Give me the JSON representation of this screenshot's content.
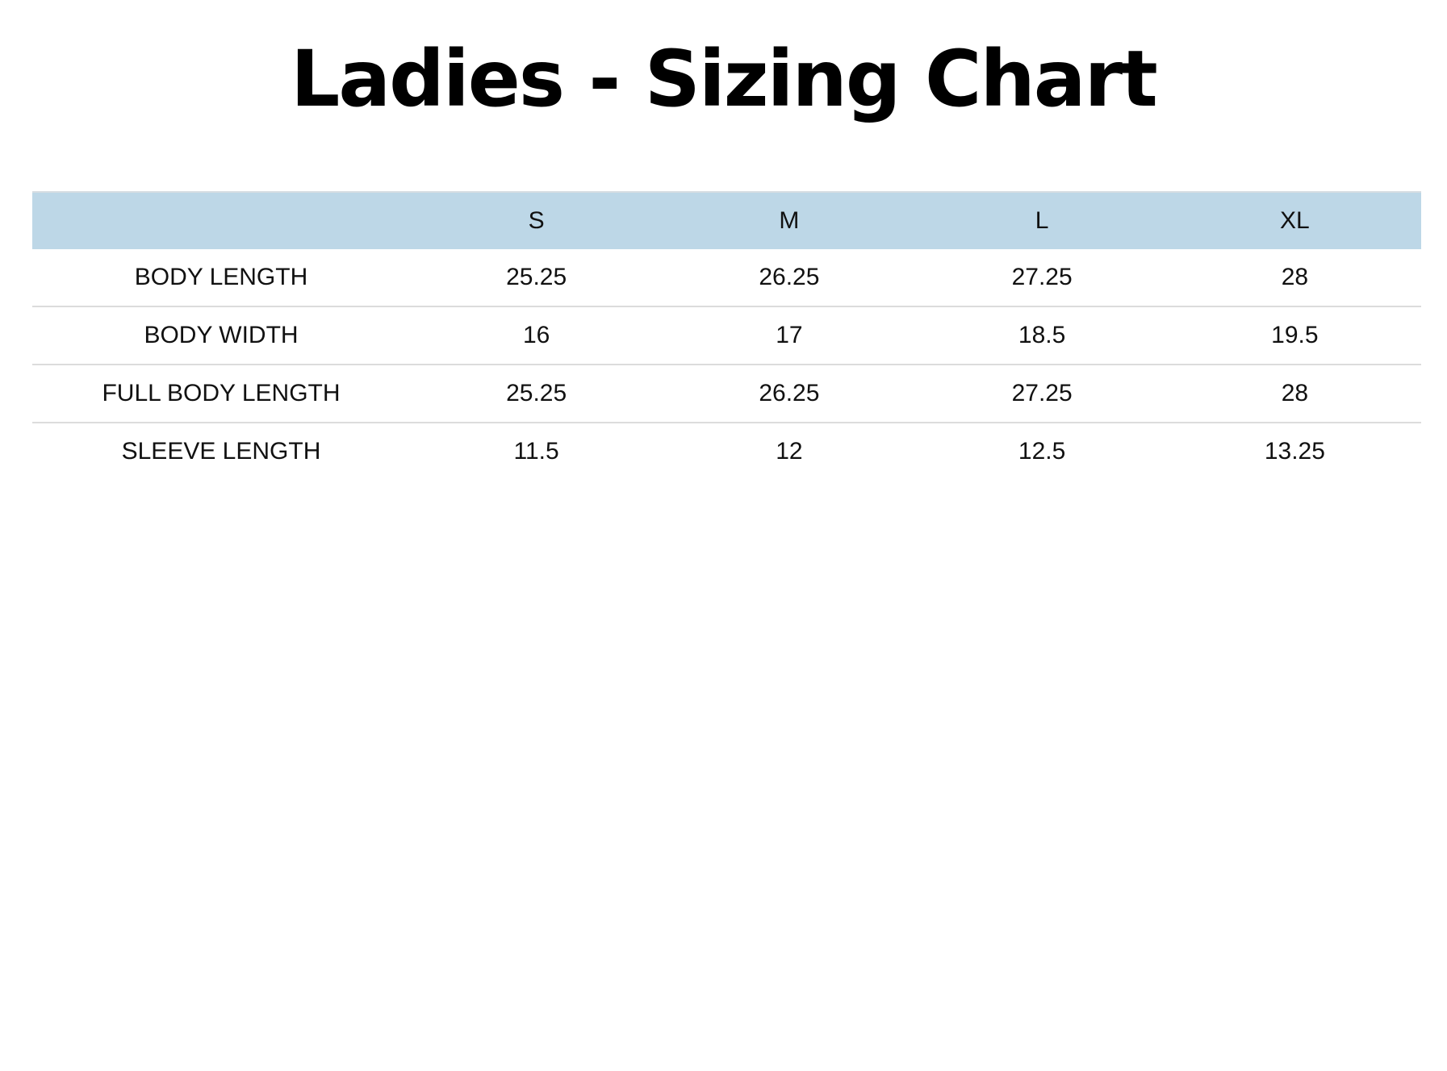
{
  "title": "Ladies - Sizing Chart",
  "colors": {
    "header_bg": "#bdd7e7"
  },
  "table": {
    "columns": [
      "",
      "S",
      "M",
      "L",
      "XL"
    ],
    "rows": [
      {
        "label": "BODY LENGTH",
        "values": [
          "25.25",
          "26.25",
          "27.25",
          "28"
        ]
      },
      {
        "label": "BODY WIDTH",
        "values": [
          "16",
          "17",
          "18.5",
          "19.5"
        ]
      },
      {
        "label": "FULL BODY LENGTH",
        "values": [
          "25.25",
          "26.25",
          "27.25",
          "28"
        ]
      },
      {
        "label": "SLEEVE LENGTH",
        "values": [
          "11.5",
          "12",
          "12.5",
          "13.25"
        ]
      }
    ]
  }
}
